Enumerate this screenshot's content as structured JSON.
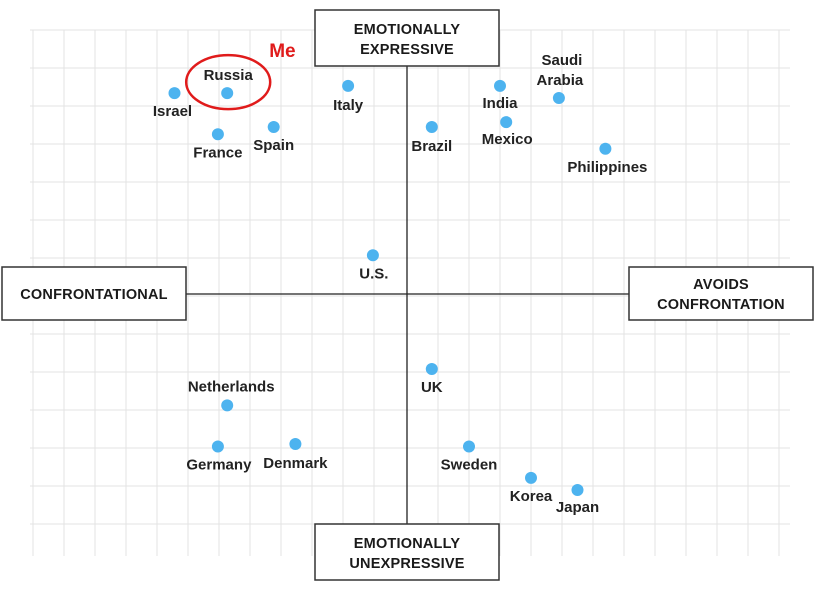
{
  "chart_data": {
    "type": "scatter",
    "title": "",
    "axes": {
      "x": {
        "range": [
          -10,
          10
        ],
        "negative_label": "CONFRONTATIONAL",
        "positive_label": [
          "AVOIDS",
          "CONFRONTATION"
        ]
      },
      "y": {
        "range": [
          -10,
          10
        ],
        "positive_label": [
          "EMOTIONALLY",
          "EXPRESSIVE"
        ],
        "negative_label": [
          "EMOTIONALLY",
          "UNEXPRESSIVE"
        ]
      }
    },
    "grid": true,
    "point_color": "#4db3ef",
    "points": [
      {
        "name": "Israel",
        "x": -7.5,
        "y": 8.3
      },
      {
        "name": "Russia",
        "x": -5.8,
        "y": 8.3,
        "highlight": true
      },
      {
        "name": "France",
        "x": -6.1,
        "y": 6.6
      },
      {
        "name": "Spain",
        "x": -4.3,
        "y": 6.9
      },
      {
        "name": "Italy",
        "x": -1.9,
        "y": 8.6
      },
      {
        "name": "Brazil",
        "x": 0.8,
        "y": 6.9
      },
      {
        "name": "India",
        "x": 3.0,
        "y": 8.6
      },
      {
        "name": "Mexico",
        "x": 3.2,
        "y": 7.1
      },
      {
        "name": "Saudi Arabia",
        "x": 4.9,
        "y": 8.1
      },
      {
        "name": "Philippines",
        "x": 6.4,
        "y": 6.0
      },
      {
        "name": "U.S.",
        "x": -1.1,
        "y": 1.6
      },
      {
        "name": "UK",
        "x": 0.8,
        "y": -3.1
      },
      {
        "name": "Netherlands",
        "x": -5.8,
        "y": -4.6
      },
      {
        "name": "Germany",
        "x": -6.1,
        "y": -6.3
      },
      {
        "name": "Denmark",
        "x": -3.6,
        "y": -6.2
      },
      {
        "name": "Sweden",
        "x": 2.0,
        "y": -6.3
      },
      {
        "name": "Korea",
        "x": 4.0,
        "y": -7.6
      },
      {
        "name": "Japan",
        "x": 5.5,
        "y": -8.1
      }
    ],
    "annotation": {
      "text": "Me",
      "target": "Russia",
      "color": "#e01b1b"
    }
  }
}
